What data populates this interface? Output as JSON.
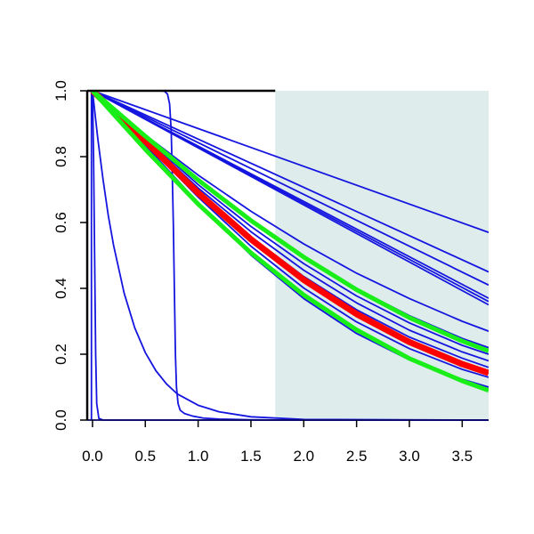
{
  "chart_data": {
    "type": "line",
    "title": "",
    "xlabel": "",
    "ylabel": "",
    "xlim": [
      -0.05,
      3.75
    ],
    "ylim": [
      0.0,
      1.0
    ],
    "x_ticks": [
      0.0,
      0.5,
      1.0,
      1.5,
      2.0,
      2.5,
      3.0,
      3.5
    ],
    "x_tick_labels": [
      "0.0",
      "0.5",
      "1.0",
      "1.5",
      "2.0",
      "2.5",
      "3.0",
      "3.5"
    ],
    "y_ticks": [
      0.0,
      0.2,
      0.4,
      0.6,
      0.8,
      1.0
    ],
    "y_tick_labels": [
      "0.0",
      "0.2",
      "0.4",
      "0.6",
      "0.8",
      "1.0"
    ],
    "grid": false,
    "legend": "none",
    "shaded_region": {
      "x_from": 1.73,
      "x_to": 3.75,
      "color": "#deeceb"
    },
    "colors": {
      "blue": "#1515e0",
      "red": "#ff0000",
      "green": "#19ee19",
      "axis": "#000000"
    },
    "series": [
      {
        "color": "blue",
        "width": 1.8,
        "points": [
          [
            0,
            1
          ],
          [
            3.75,
            0.57
          ]
        ]
      },
      {
        "color": "blue",
        "width": 1.8,
        "points": [
          [
            0,
            1
          ],
          [
            3.75,
            0.45
          ]
        ]
      },
      {
        "color": "blue",
        "width": 1.8,
        "points": [
          [
            0,
            1
          ],
          [
            3.75,
            0.41
          ]
        ]
      },
      {
        "color": "blue",
        "width": 1.8,
        "points": [
          [
            0,
            1
          ],
          [
            3.75,
            0.37
          ]
        ]
      },
      {
        "color": "blue",
        "width": 1.8,
        "points": [
          [
            0,
            1
          ],
          [
            3.75,
            0.36
          ]
        ]
      },
      {
        "color": "blue",
        "width": 1.8,
        "points": [
          [
            0,
            1
          ],
          [
            3.75,
            0.35
          ]
        ]
      },
      {
        "color": "blue",
        "width": 1.8,
        "points": [
          [
            0,
            1
          ],
          [
            0.5,
            0.866
          ],
          [
            1,
            0.744
          ],
          [
            1.5,
            0.634
          ],
          [
            2,
            0.535
          ],
          [
            2.5,
            0.446
          ],
          [
            3,
            0.369
          ],
          [
            3.5,
            0.3
          ],
          [
            3.75,
            0.27
          ]
        ]
      },
      {
        "color": "blue",
        "width": 1.8,
        "points": [
          [
            0,
            1
          ],
          [
            0.5,
            0.86
          ],
          [
            1,
            0.725
          ],
          [
            1.5,
            0.603
          ],
          [
            2,
            0.494
          ],
          [
            2.5,
            0.399
          ],
          [
            3,
            0.317
          ],
          [
            3.5,
            0.248
          ],
          [
            3.75,
            0.22
          ]
        ]
      },
      {
        "color": "blue",
        "width": 1.8,
        "points": [
          [
            0,
            1
          ],
          [
            0.5,
            0.857
          ],
          [
            1,
            0.715
          ],
          [
            1.5,
            0.588
          ],
          [
            2,
            0.475
          ],
          [
            2.5,
            0.377
          ],
          [
            3,
            0.295
          ],
          [
            3.5,
            0.227
          ],
          [
            3.75,
            0.2
          ]
        ]
      },
      {
        "color": "blue",
        "width": 1.8,
        "points": [
          [
            0,
            1
          ],
          [
            0.5,
            0.853
          ],
          [
            1,
            0.705
          ],
          [
            1.5,
            0.572
          ],
          [
            2,
            0.455
          ],
          [
            2.5,
            0.356
          ],
          [
            3,
            0.273
          ],
          [
            3.5,
            0.207
          ],
          [
            3.75,
            0.18
          ]
        ]
      },
      {
        "color": "blue",
        "width": 1.8,
        "points": [
          [
            0,
            1
          ],
          [
            0.5,
            0.849
          ],
          [
            1,
            0.695
          ],
          [
            1.5,
            0.556
          ],
          [
            2,
            0.436
          ],
          [
            2.5,
            0.335
          ],
          [
            3,
            0.252
          ],
          [
            3.5,
            0.188
          ],
          [
            3.75,
            0.16
          ]
        ]
      },
      {
        "color": "blue",
        "width": 1.8,
        "points": [
          [
            0,
            1
          ],
          [
            0.5,
            0.842
          ],
          [
            1,
            0.677
          ],
          [
            1.5,
            0.528
          ],
          [
            2,
            0.401
          ],
          [
            2.5,
            0.298
          ],
          [
            3,
            0.217
          ],
          [
            3.5,
            0.154
          ],
          [
            3.75,
            0.13
          ]
        ]
      },
      {
        "color": "blue",
        "width": 1.8,
        "points": [
          [
            0,
            1
          ],
          [
            0.5,
            0.835
          ],
          [
            1,
            0.66
          ],
          [
            1.5,
            0.501
          ],
          [
            2,
            0.369
          ],
          [
            2.5,
            0.263
          ],
          [
            3,
            0.183
          ],
          [
            3.5,
            0.124
          ],
          [
            3.75,
            0.1
          ]
        ]
      },
      {
        "color": "blue",
        "width": 1.8,
        "points": [
          [
            0,
            1
          ],
          [
            0.05,
            0.855
          ],
          [
            0.1,
            0.73
          ],
          [
            0.15,
            0.62
          ],
          [
            0.2,
            0.53
          ],
          [
            0.3,
            0.385
          ],
          [
            0.4,
            0.28
          ],
          [
            0.5,
            0.205
          ],
          [
            0.6,
            0.15
          ],
          [
            0.7,
            0.11
          ],
          [
            0.8,
            0.08
          ],
          [
            1.0,
            0.045
          ],
          [
            1.2,
            0.025
          ],
          [
            1.5,
            0.01
          ],
          [
            2.0,
            0.002
          ],
          [
            3.75,
            0.0
          ]
        ]
      },
      {
        "color": "blue",
        "width": 1.8,
        "points": [
          [
            0,
            1
          ],
          [
            0.01,
            0.8
          ],
          [
            0.02,
            0.5
          ],
          [
            0.03,
            0.2
          ],
          [
            0.04,
            0.05
          ],
          [
            0.06,
            0.005
          ],
          [
            0.1,
            0.0
          ],
          [
            3.75,
            0.0
          ]
        ]
      },
      {
        "color": "blue",
        "width": 1.8,
        "points": [
          [
            0,
            1
          ],
          [
            0.62,
            1
          ],
          [
            0.68,
            0.999
          ],
          [
            0.71,
            0.99
          ],
          [
            0.73,
            0.96
          ],
          [
            0.745,
            0.88
          ],
          [
            0.755,
            0.75
          ],
          [
            0.765,
            0.6
          ],
          [
            0.775,
            0.4
          ],
          [
            0.785,
            0.2
          ],
          [
            0.795,
            0.1
          ],
          [
            0.81,
            0.05
          ],
          [
            0.83,
            0.03
          ],
          [
            0.87,
            0.02
          ],
          [
            0.95,
            0.012
          ],
          [
            1.05,
            0.006
          ],
          [
            1.2,
            0.003
          ],
          [
            1.5,
            0.001
          ],
          [
            2.0,
            0.0
          ],
          [
            3.75,
            0.0
          ]
        ]
      },
      {
        "color": "blue",
        "width": 1.8,
        "points": [
          [
            -0.01,
            0.0
          ],
          [
            -0.01,
            1.0
          ]
        ]
      },
      {
        "color": "blue",
        "width": 1.8,
        "points": [
          [
            -0.05,
            0.0
          ],
          [
            3.75,
            0.0
          ]
        ]
      },
      {
        "color": "red",
        "width": 7,
        "points": [
          [
            0,
            1
          ],
          [
            0.5,
            0.847
          ],
          [
            1,
            0.69
          ],
          [
            1.5,
            0.549
          ],
          [
            2,
            0.426
          ],
          [
            2.5,
            0.322
          ],
          [
            3,
            0.237
          ],
          [
            3.5,
            0.17
          ],
          [
            3.75,
            0.143
          ]
        ]
      },
      {
        "color": "green",
        "width": 5,
        "points": [
          [
            0,
            1
          ],
          [
            0.5,
            0.862
          ],
          [
            1,
            0.729
          ],
          [
            1.5,
            0.606
          ],
          [
            2,
            0.495
          ],
          [
            2.5,
            0.396
          ],
          [
            3,
            0.311
          ],
          [
            3.5,
            0.24
          ],
          [
            3.75,
            0.21
          ]
        ]
      },
      {
        "color": "green",
        "width": 5,
        "points": [
          [
            0,
            1
          ],
          [
            0.5,
            0.822
          ],
          [
            1,
            0.656
          ],
          [
            1.5,
            0.508
          ],
          [
            2,
            0.38
          ],
          [
            2.5,
            0.274
          ],
          [
            3,
            0.187
          ],
          [
            3.5,
            0.119
          ],
          [
            3.75,
            0.09
          ]
        ]
      }
    ]
  }
}
